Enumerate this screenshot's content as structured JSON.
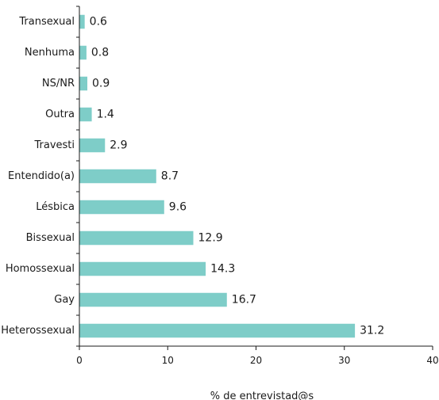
{
  "chart_data": {
    "type": "bar",
    "orientation": "horizontal",
    "categories": [
      "Transexual",
      "Nenhuma",
      "NS/NR",
      "Outra",
      "Travesti",
      "Entendido(a)",
      "Lésbica",
      "Bissexual",
      "Homossexual",
      "Gay",
      "Heterossexual"
    ],
    "values": [
      0.6,
      0.8,
      0.9,
      1.4,
      2.9,
      8.7,
      9.6,
      12.9,
      14.3,
      16.7,
      31.2
    ],
    "value_labels": [
      "0.6",
      "0.8",
      "0.9",
      "1.4",
      "2.9",
      "8.7",
      "9.6",
      "12.9",
      "14.3",
      "16.7",
      "31.2"
    ],
    "x_ticks": [
      0,
      10,
      20,
      30,
      40
    ],
    "xlim": [
      0,
      40
    ],
    "xlabel": "% de entrevistad@s",
    "ylabel": "",
    "title": "",
    "bar_color": "#7ecdc8",
    "grid": false,
    "legend": "none"
  }
}
